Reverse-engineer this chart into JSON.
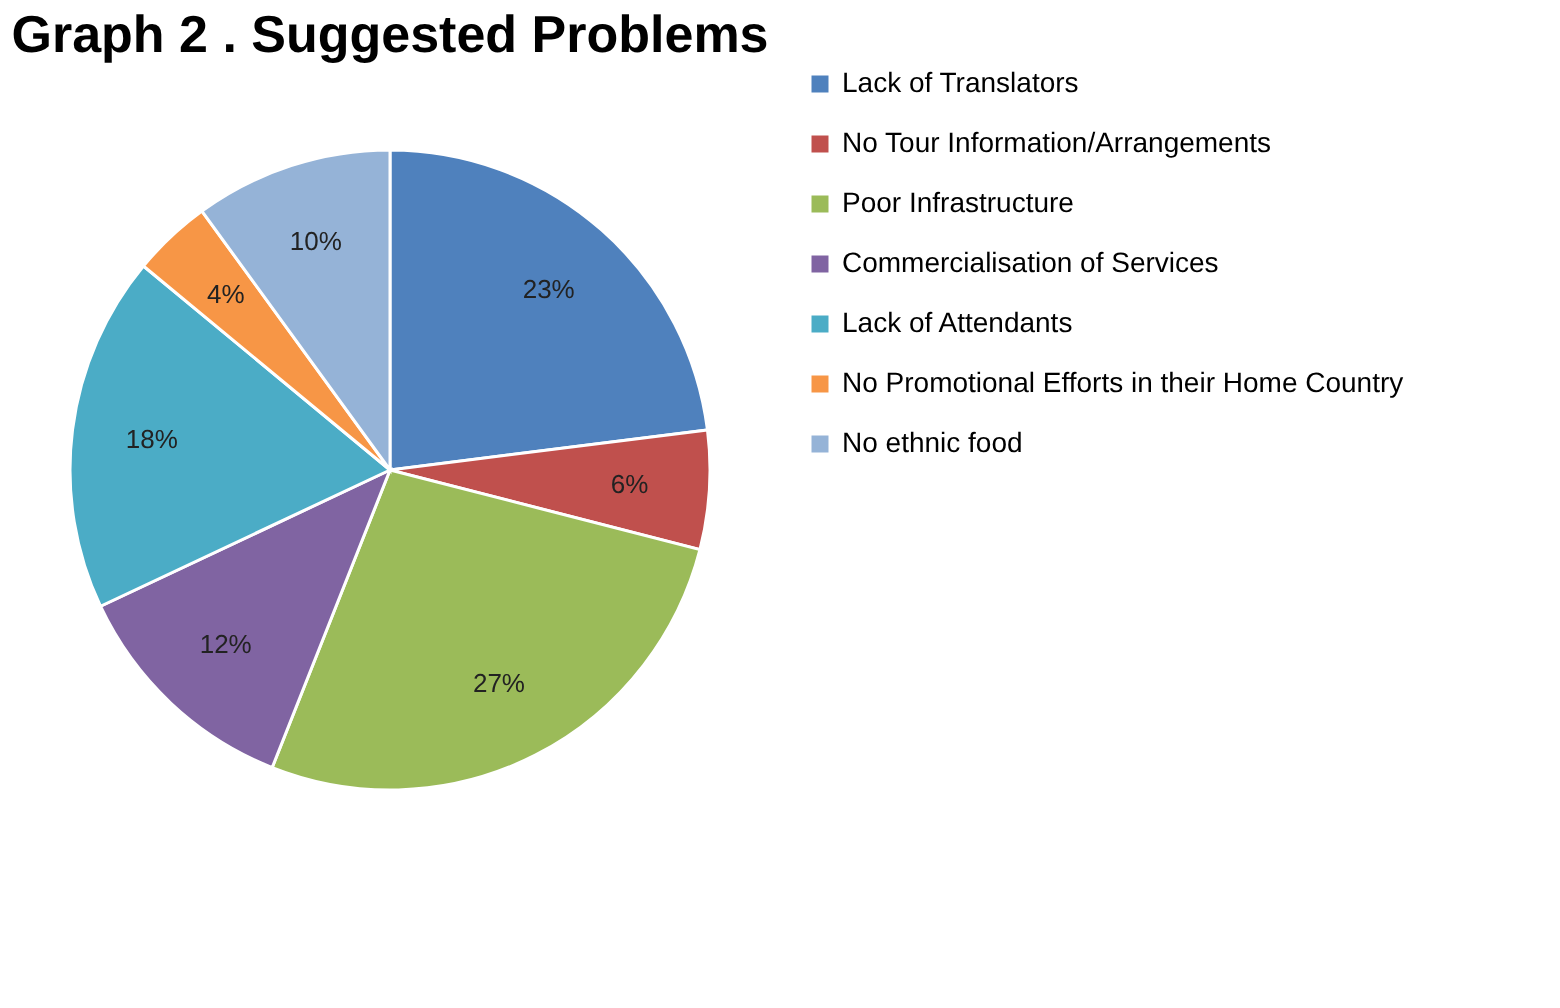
{
  "chart_data": {
    "type": "pie",
    "title": "Graph 2 . Suggested Problems",
    "categories": [
      "Lack of Translators",
      "No Tour Information/Arrangements",
      "Poor Infrastructure",
      "Commercialisation of Services",
      "Lack of Attendants",
      "No Promotional Efforts in their Home Country",
      "No ethnic food"
    ],
    "values": [
      23,
      6,
      27,
      12,
      18,
      4,
      10
    ],
    "value_labels": [
      "23%",
      "6%",
      "27%",
      "12%",
      "18%",
      "4%",
      "10%"
    ],
    "colors": [
      "#4f81bd",
      "#c0504d",
      "#9bbb59",
      "#8064a2",
      "#4bacc6",
      "#f79646",
      "#95b3d7"
    ],
    "legend": "right"
  }
}
